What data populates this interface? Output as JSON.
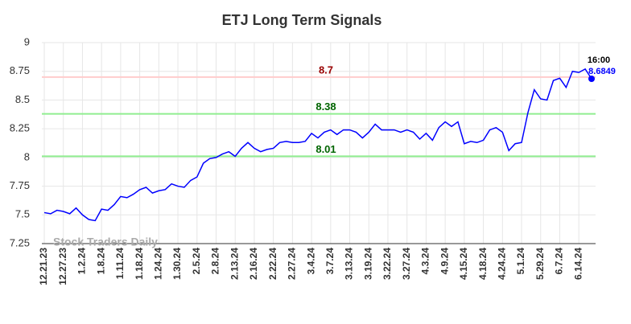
{
  "chart_data": {
    "type": "line",
    "title": "ETJ Long Term Signals",
    "categories": [
      "12.21.23",
      null,
      null,
      "12.27.23",
      null,
      null,
      "1.2.24",
      null,
      null,
      "1.8.24",
      null,
      null,
      "1.11.24",
      null,
      null,
      "1.18.24",
      null,
      null,
      "1.24.24",
      null,
      null,
      "1.30.24",
      null,
      null,
      "2.5.24",
      null,
      null,
      "2.8.24",
      null,
      null,
      "2.13.24",
      null,
      null,
      "2.16.24",
      null,
      null,
      "2.22.24",
      null,
      null,
      "2.27.24",
      null,
      null,
      "3.4.24",
      null,
      null,
      "3.7.24",
      null,
      null,
      "3.13.24",
      null,
      null,
      "3.19.24",
      null,
      null,
      "3.22.24",
      null,
      null,
      "3.27.24",
      null,
      null,
      "4.3.24",
      null,
      null,
      "4.9.24",
      null,
      null,
      "4.15.24",
      null,
      null,
      "4.18.24",
      null,
      null,
      "4.24.24",
      null,
      null,
      "5.1.24",
      null,
      null,
      "5.29.24",
      null,
      null,
      "6.7.24",
      null,
      null,
      "6.14.24",
      null,
      null
    ],
    "values": [
      7.52,
      7.51,
      7.54,
      7.53,
      7.51,
      7.56,
      7.5,
      7.46,
      7.45,
      7.55,
      7.54,
      7.59,
      7.66,
      7.65,
      7.68,
      7.72,
      7.74,
      7.69,
      7.71,
      7.72,
      7.77,
      7.75,
      7.74,
      7.8,
      7.83,
      7.95,
      7.99,
      8.0,
      8.03,
      8.05,
      8.01,
      8.08,
      8.13,
      8.08,
      8.05,
      8.07,
      8.08,
      8.13,
      8.14,
      8.13,
      8.13,
      8.14,
      8.21,
      8.17,
      8.22,
      8.24,
      8.2,
      8.24,
      8.24,
      8.22,
      8.17,
      8.22,
      8.29,
      8.24,
      8.24,
      8.24,
      8.22,
      8.24,
      8.22,
      8.16,
      8.21,
      8.15,
      8.26,
      8.31,
      8.27,
      8.31,
      8.12,
      8.14,
      8.13,
      8.15,
      8.24,
      8.26,
      8.22,
      8.06,
      8.12,
      8.13,
      8.39,
      8.59,
      8.51,
      8.5,
      8.67,
      8.69,
      8.61,
      8.75,
      8.74,
      8.77,
      8.6849
    ],
    "color": "#0000ff",
    "ylim": [
      7.25,
      9
    ],
    "yticks": [
      7.25,
      7.5,
      7.75,
      8,
      8.25,
      8.5,
      8.75,
      9
    ],
    "grid": true,
    "reference_lines": [
      {
        "value": 8.7,
        "color": "#ffcccc",
        "label_color": "#990000"
      },
      {
        "value": 8.38,
        "color": "#90ee90",
        "label_color": "#006400"
      },
      {
        "value": 8.01,
        "color": "#90ee90",
        "label_color": "#006400"
      }
    ],
    "last_time": "16:00",
    "watermark": "Stock Traders Daily"
  }
}
